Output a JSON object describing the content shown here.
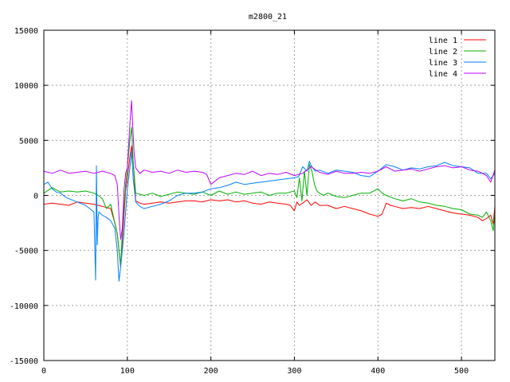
{
  "chart_data": {
    "type": "line",
    "title": "m2800_21",
    "xlabel": "",
    "ylabel": "",
    "xlim": [
      0,
      540
    ],
    "ylim": [
      -15000,
      15000
    ],
    "xticks": [
      0,
      100,
      200,
      300,
      400,
      500
    ],
    "yticks": [
      -15000,
      -10000,
      -5000,
      0,
      5000,
      10000,
      15000
    ],
    "grid": true,
    "legend": "top-right",
    "series": [
      {
        "name": "line 1",
        "color": "#ff0000",
        "x": [
          0,
          10,
          20,
          30,
          40,
          50,
          60,
          70,
          80,
          85,
          88,
          90,
          92,
          95,
          98,
          100,
          103,
          105,
          107,
          110,
          115,
          120,
          130,
          140,
          150,
          160,
          170,
          180,
          190,
          200,
          210,
          220,
          230,
          240,
          250,
          260,
          270,
          280,
          290,
          295,
          300,
          303,
          306,
          310,
          315,
          320,
          325,
          330,
          340,
          350,
          360,
          370,
          380,
          390,
          400,
          405,
          410,
          415,
          420,
          430,
          440,
          450,
          460,
          470,
          480,
          490,
          500,
          510,
          520,
          525,
          530,
          535,
          538,
          540
        ],
        "y": [
          -800,
          -700,
          -800,
          -900,
          -600,
          -700,
          -800,
          -1000,
          -1200,
          -2500,
          -3500,
          -5000,
          -6500,
          -3000,
          500,
          1500,
          3500,
          4500,
          3000,
          -500,
          -700,
          -800,
          -700,
          -600,
          -700,
          -600,
          -500,
          -500,
          -600,
          -400,
          -500,
          -400,
          -600,
          -500,
          -700,
          -800,
          -600,
          -700,
          -800,
          -900,
          -1400,
          -600,
          -900,
          -700,
          -400,
          -900,
          -600,
          -900,
          -900,
          -1200,
          -1000,
          -1200,
          -1400,
          -1700,
          -1900,
          -1700,
          -700,
          -900,
          -1000,
          -1200,
          -1100,
          -1200,
          -1000,
          -1200,
          -1400,
          -1600,
          -1700,
          -1800,
          -2000,
          -2300,
          -2100,
          -1800,
          -2600,
          -1000
        ]
      },
      {
        "name": "line 2",
        "color": "#00b000",
        "x": [
          0,
          10,
          20,
          30,
          40,
          50,
          60,
          65,
          70,
          75,
          80,
          85,
          88,
          90,
          92,
          95,
          98,
          100,
          103,
          105,
          107,
          110,
          115,
          120,
          130,
          140,
          150,
          160,
          170,
          180,
          190,
          200,
          210,
          220,
          230,
          240,
          250,
          260,
          270,
          280,
          290,
          295,
          300,
          303,
          306,
          309,
          312,
          315,
          318,
          321,
          324,
          327,
          330,
          335,
          340,
          350,
          360,
          370,
          380,
          390,
          400,
          405,
          410,
          420,
          430,
          440,
          450,
          460,
          470,
          480,
          490,
          500,
          510,
          520,
          525,
          530,
          535,
          538,
          540
        ],
        "y": [
          200,
          700,
          300,
          400,
          300,
          400,
          200,
          0,
          -300,
          -1200,
          -800,
          -2500,
          -3500,
          -5000,
          -6300,
          -2000,
          1000,
          2500,
          5000,
          6200,
          3000,
          200,
          100,
          0,
          200,
          -100,
          100,
          300,
          200,
          100,
          300,
          0,
          400,
          100,
          300,
          100,
          200,
          300,
          0,
          200,
          200,
          300,
          400,
          -200,
          1600,
          -500,
          2200,
          0,
          2800,
          2200,
          1000,
          400,
          200,
          0,
          200,
          -100,
          -200,
          0,
          200,
          200,
          600,
          200,
          0,
          -300,
          -500,
          -300,
          -600,
          -700,
          -900,
          -1000,
          -1200,
          -1300,
          -1700,
          -1800,
          -2000,
          -1500,
          -2300,
          -3200,
          -1500
        ]
      },
      {
        "name": "line 3",
        "color": "#0080ff",
        "x": [
          0,
          5,
          10,
          15,
          20,
          25,
          30,
          40,
          50,
          55,
          60,
          62,
          63,
          64,
          65,
          66,
          70,
          75,
          80,
          85,
          88,
          90,
          92,
          94,
          96,
          98,
          100,
          103,
          105,
          107,
          110,
          115,
          120,
          130,
          140,
          150,
          160,
          170,
          180,
          190,
          200,
          210,
          220,
          230,
          240,
          250,
          260,
          270,
          280,
          290,
          300,
          305,
          310,
          315,
          318,
          320,
          325,
          330,
          340,
          350,
          360,
          370,
          380,
          390,
          400,
          410,
          420,
          430,
          440,
          450,
          460,
          470,
          480,
          490,
          500,
          510,
          520,
          530,
          535,
          540
        ],
        "y": [
          1000,
          1200,
          600,
          300,
          200,
          -100,
          -300,
          -600,
          -900,
          -1200,
          -1500,
          -7700,
          2700,
          -4500,
          -2000,
          -1500,
          -1800,
          -2000,
          -2300,
          -3000,
          -5000,
          -7800,
          -6500,
          -5000,
          -3500,
          -1500,
          500,
          2500,
          4000,
          1500,
          -600,
          -1000,
          -1200,
          -1000,
          -800,
          -500,
          0,
          200,
          200,
          300,
          600,
          700,
          900,
          1200,
          1000,
          1100,
          1200,
          1300,
          1400,
          1500,
          1600,
          1700,
          2600,
          2200,
          3100,
          2700,
          2200,
          2300,
          2000,
          2300,
          2200,
          2100,
          1800,
          1700,
          2200,
          2800,
          2600,
          2300,
          2500,
          2400,
          2600,
          2700,
          3000,
          2700,
          2600,
          2500,
          2000,
          2000,
          1500,
          2000
        ]
      },
      {
        "name": "line 4",
        "color": "#c000ff",
        "x": [
          0,
          10,
          20,
          30,
          40,
          50,
          60,
          70,
          75,
          80,
          85,
          88,
          90,
          92,
          94,
          96,
          98,
          100,
          103,
          105,
          106,
          108,
          110,
          115,
          120,
          130,
          140,
          150,
          160,
          170,
          180,
          190,
          195,
          200,
          210,
          220,
          230,
          240,
          250,
          260,
          270,
          280,
          290,
          300,
          310,
          320,
          330,
          340,
          350,
          360,
          370,
          380,
          390,
          400,
          410,
          420,
          430,
          440,
          450,
          460,
          470,
          480,
          490,
          500,
          510,
          520,
          530,
          535,
          540
        ],
        "y": [
          2200,
          2000,
          2300,
          2000,
          2100,
          2200,
          2000,
          2200,
          2100,
          2000,
          1800,
          1000,
          -1800,
          -4000,
          -3000,
          500,
          2000,
          2500,
          6500,
          8600,
          7000,
          4000,
          2500,
          2000,
          2300,
          2100,
          2200,
          2000,
          2300,
          2100,
          2200,
          2100,
          1900,
          1000,
          1600,
          1800,
          2000,
          1900,
          2200,
          1800,
          2000,
          1900,
          2100,
          1800,
          2000,
          2600,
          2100,
          1900,
          2200,
          2000,
          2000,
          2100,
          2000,
          2200,
          2600,
          2200,
          2300,
          2400,
          2200,
          2400,
          2600,
          2700,
          2500,
          2600,
          2300,
          2200,
          1800,
          1200,
          2300
        ]
      }
    ]
  }
}
